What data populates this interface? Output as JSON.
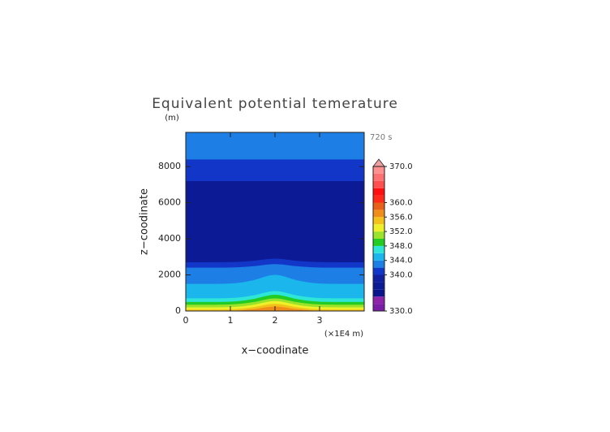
{
  "chart_data": {
    "type": "contour",
    "title": "Equivalent potential temerature",
    "y_unit": "(m)",
    "time_label": "720 s",
    "ylabel": "z−coodinate",
    "xlabel": "x−coodinate",
    "x_unit": "(×1E4 m)",
    "xlim": [
      0,
      4
    ],
    "xticks": [
      0,
      1,
      2,
      3
    ],
    "ylim": [
      0,
      9900
    ],
    "yticks": [
      0,
      2000,
      4000,
      6000,
      8000
    ],
    "x": [
      0,
      1,
      1.5,
      2,
      2.5,
      3,
      4
    ],
    "contours": [
      {
        "value": 343,
        "z": [
          9900,
          9900,
          9900,
          9900,
          9900,
          9900,
          9900
        ]
      },
      {
        "value": 341,
        "z": [
          8400,
          8400,
          8400,
          8400,
          8400,
          8400,
          8400
        ]
      },
      {
        "value": 337,
        "z": [
          7200,
          7200,
          7200,
          7200,
          7200,
          7200,
          7200
        ]
      },
      {
        "value": 341,
        "z": [
          2700,
          2710,
          2780,
          2900,
          2780,
          2710,
          2700
        ]
      },
      {
        "value": 343,
        "z": [
          2400,
          2410,
          2480,
          2600,
          2480,
          2410,
          2400
        ]
      },
      {
        "value": 345,
        "z": [
          1500,
          1525,
          1700,
          2000,
          1700,
          1525,
          1500
        ]
      },
      {
        "value": 347,
        "z": [
          700,
          720,
          860,
          1100,
          860,
          720,
          700
        ]
      },
      {
        "value": 349,
        "z": [
          500,
          520,
          660,
          900,
          660,
          520,
          500
        ]
      },
      {
        "value": 351,
        "z": [
          350,
          368,
          490,
          700,
          490,
          368,
          350
        ]
      },
      {
        "value": 353,
        "z": [
          200,
          218,
          340,
          550,
          340,
          218,
          200
        ]
      },
      {
        "value": 355,
        "z": [
          80,
          96,
          208,
          400,
          208,
          96,
          80
        ]
      },
      {
        "value": 357,
        "z": [
          0,
          13,
          100,
          250,
          100,
          13,
          0
        ]
      }
    ],
    "levels": [
      330,
      332,
      334,
      336,
      338,
      340,
      342,
      344,
      346,
      348,
      350,
      352,
      354,
      356,
      358,
      360,
      362,
      364,
      366,
      368,
      370
    ],
    "colors": [
      "#7a1ea8",
      "#8e24aa",
      "#0a148c",
      "#0d1a96",
      "#10209e",
      "#1237c8",
      "#1d7fe6",
      "#1ab6ec",
      "#2ee6d8",
      "#22cc22",
      "#9be22a",
      "#eef02a",
      "#f2c21a",
      "#f08c1a",
      "#e8601a",
      "#ff2a1a",
      "#ff1010",
      "#ff5050",
      "#ff7070",
      "#ff9090"
    ],
    "extend_color": "#f0a0a0",
    "cbar_ticks": [
      {
        "value": 330,
        "label": "330.0"
      },
      {
        "value": 340,
        "label": "340.0"
      },
      {
        "value": 344,
        "label": "344.0"
      },
      {
        "value": 348,
        "label": "348.0"
      },
      {
        "value": 352,
        "label": "352.0"
      },
      {
        "value": 356,
        "label": "356.0"
      },
      {
        "value": 360,
        "label": "360.0"
      },
      {
        "value": 370,
        "label": "370.0"
      }
    ]
  }
}
